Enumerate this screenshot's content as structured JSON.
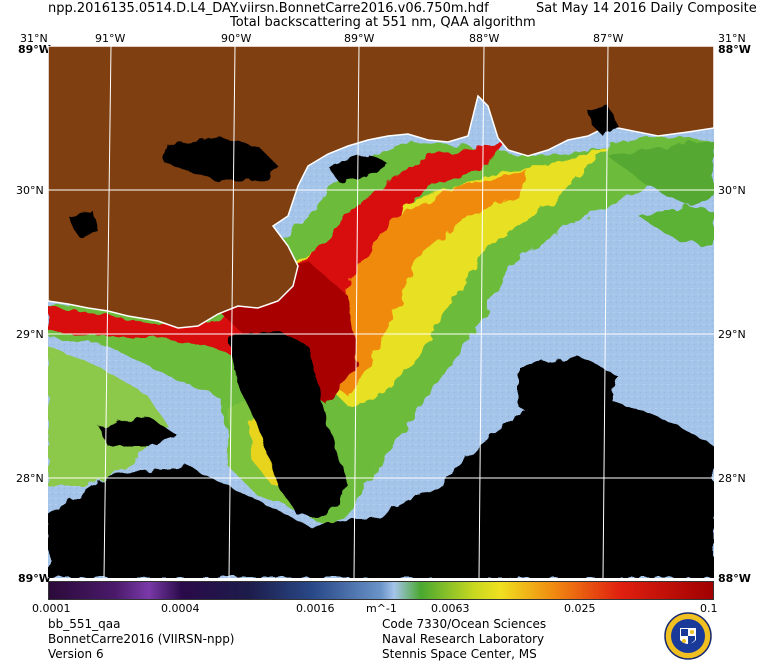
{
  "header": {
    "file": "npp.2016135.0514.D.L4_DAY.viirsn.BonnetCarre2016.v06.750m.hdf",
    "date": "Sat May 14 2016 Daily Composite",
    "subtitle": "Total backscattering at 551 nm, QAA algorithm"
  },
  "axes": {
    "lon_top": [
      "91°W",
      "90°W",
      "89°W",
      "88°W",
      "87°W"
    ],
    "lat_left": [
      "30°N",
      "29°N",
      "28°N"
    ],
    "lat_right": [
      "30°N",
      "29°N",
      "28°N"
    ],
    "corner_top": "31°N",
    "corner_left_top": "89°W",
    "corner_right_top": "88°W",
    "corner_left_bottom": "89°W",
    "corner_right_bottom": "88°W"
  },
  "colorbar": {
    "ticks": [
      "0.0001",
      "0.0004",
      "0.0016",
      "m^-1",
      "0.0063",
      "0.025",
      "0.1"
    ]
  },
  "footer": {
    "left": [
      "bb_551_qaa",
      "BonnetCarre2016 (VIIRSN-npp)",
      "Version 6"
    ],
    "right": [
      "Code 7330/Ocean Sciences",
      "Naval Research Laboratory",
      "Stennis Space Center, MS"
    ]
  },
  "colors": {
    "land": "#7f3f10",
    "ocean_low": "#a5c4ea",
    "high": "#d20000",
    "no_data": "#000000"
  }
}
